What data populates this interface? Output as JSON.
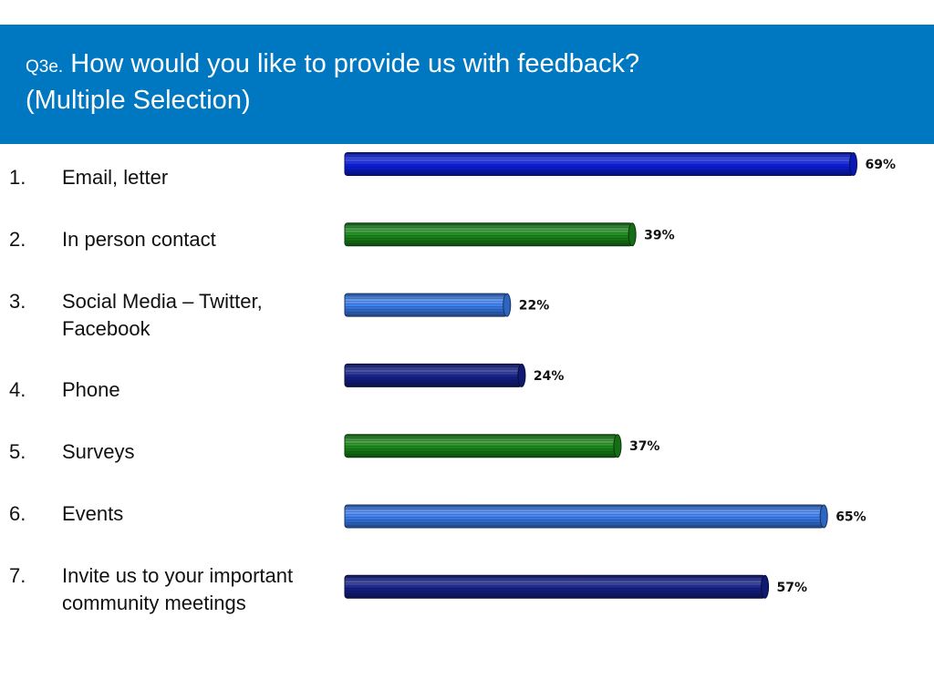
{
  "header": {
    "question_number": "Q3e.",
    "title_line1": "How would you like to provide us with feedback?",
    "title_line2": "(Multiple Selection)"
  },
  "options": [
    {
      "number": "1.",
      "label": "Email, letter"
    },
    {
      "number": "2.",
      "label": "In person contact"
    },
    {
      "number": "3.",
      "label": "Social Media – Twitter, Facebook"
    },
    {
      "number": "4.",
      "label": "Phone"
    },
    {
      "number": "5.",
      "label": "Surveys"
    },
    {
      "number": "6.",
      "label": "Events"
    },
    {
      "number": "7.",
      "label": "Invite us to your important community meetings"
    }
  ],
  "colors": {
    "header_band": "#0078c1",
    "bar_palette": [
      "#0a1fe0",
      "#1a8a1a",
      "#3a7ef0",
      "#14208c",
      "#1a8a1a",
      "#3a7ef0",
      "#14208c"
    ]
  },
  "chart_data": {
    "type": "bar",
    "orientation": "horizontal",
    "categories": [
      "Email, letter",
      "In person contact",
      "Social Media – Twitter, Facebook",
      "Phone",
      "Surveys",
      "Events",
      "Invite us to your important community meetings"
    ],
    "values": [
      69,
      39,
      22,
      24,
      37,
      65,
      57
    ],
    "value_labels": [
      "69%",
      "39%",
      "22%",
      "24%",
      "37%",
      "65%",
      "57%"
    ],
    "unit": "%",
    "xlim": [
      0,
      100
    ],
    "grid": false,
    "legend": "none"
  }
}
